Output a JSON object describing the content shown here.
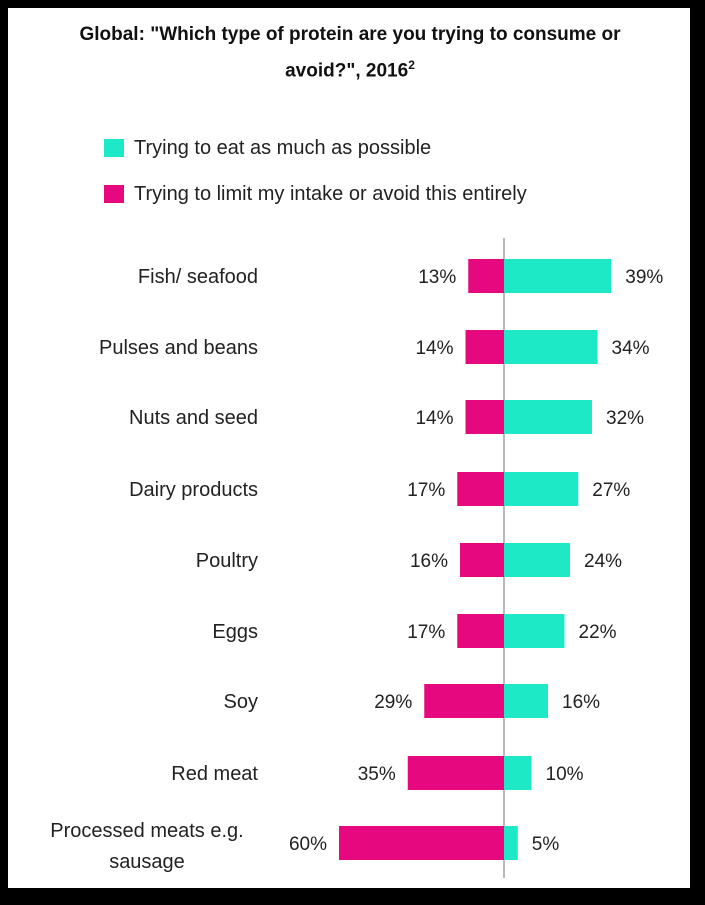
{
  "chart_data": {
    "type": "bar",
    "title": "Global:  \"Which type of protein are you trying to consume or avoid?\", 2016",
    "title_line1": "Global:  \"Which type of protein are you trying to consume or",
    "title_line2": "avoid?\", 2016",
    "title_superscript": "2",
    "categories": [
      "Fish/ seafood",
      "Pulses and beans",
      "Nuts and seed",
      "Dairy products",
      "Poultry",
      "Eggs",
      "Soy",
      "Red meat",
      "Processed meats e.g. sausage"
    ],
    "series": [
      {
        "name": "Trying to eat as much as possible",
        "values": [
          39,
          34,
          32,
          27,
          24,
          22,
          16,
          10,
          5
        ],
        "color": "#1de9c7"
      },
      {
        "name": "Trying to limit my intake or avoid this entirely",
        "values": [
          13,
          14,
          14,
          17,
          16,
          17,
          29,
          35,
          60
        ],
        "color": "#e6087e"
      }
    ],
    "legend_position": "top",
    "grid": false
  }
}
